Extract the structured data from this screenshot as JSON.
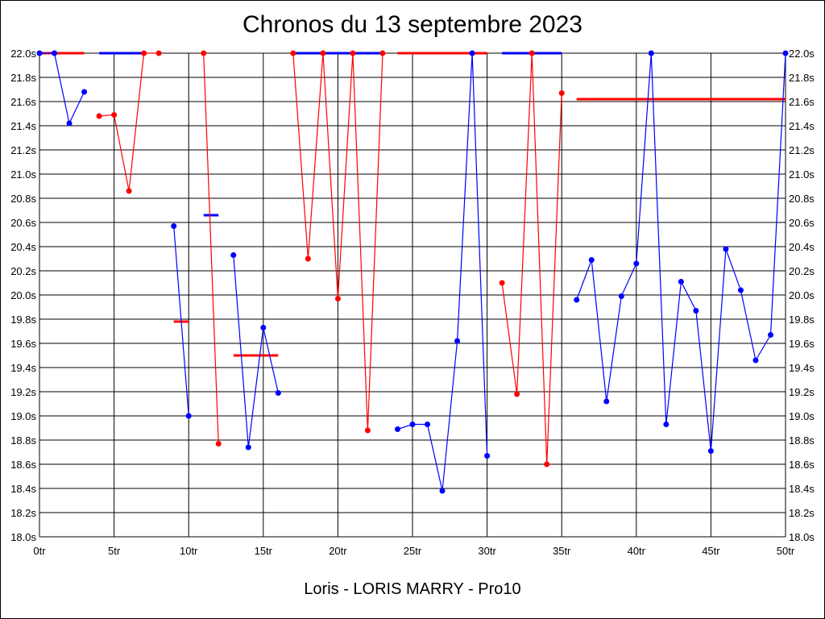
{
  "chart_data": {
    "type": "line",
    "title": "Chronos du 13 septembre 2023",
    "subtitle": "Loris - LORIS MARRY - Pro10",
    "x_unit": "tr",
    "y_unit": "s",
    "xlim": [
      0,
      50
    ],
    "ylim": [
      18.0,
      22.0
    ],
    "x_ticks": [
      0,
      5,
      10,
      15,
      20,
      25,
      30,
      35,
      40,
      45,
      50
    ],
    "y_ticks": [
      18.0,
      18.2,
      18.4,
      18.6,
      18.8,
      19.0,
      19.2,
      19.4,
      19.6,
      19.8,
      20.0,
      20.2,
      20.4,
      20.6,
      20.8,
      21.0,
      21.2,
      21.4,
      21.6,
      21.8,
      22.0
    ],
    "grid": true,
    "colors": {
      "blue": "#0000ff",
      "red": "#ff0000",
      "grid": "#000000"
    },
    "segments": [
      {
        "color": "blue",
        "points": [
          [
            0,
            22.0
          ],
          [
            1,
            22.0
          ],
          [
            2,
            21.42
          ],
          [
            3,
            21.68
          ]
        ]
      },
      {
        "color": "red",
        "points": [
          [
            4,
            21.48
          ],
          [
            5,
            21.49
          ],
          [
            6,
            20.86
          ],
          [
            7,
            22.0
          ],
          [
            8,
            22.0
          ]
        ]
      },
      {
        "color": "blue",
        "points": [
          [
            9,
            20.57
          ],
          [
            10,
            19.0
          ]
        ]
      },
      {
        "color": "red",
        "points": [
          [
            11,
            22.0
          ],
          [
            12,
            18.77
          ]
        ]
      },
      {
        "color": "blue",
        "points": [
          [
            13,
            20.33
          ],
          [
            14,
            18.74
          ],
          [
            15,
            19.73
          ],
          [
            16,
            19.19
          ]
        ]
      },
      {
        "color": "red",
        "points": [
          [
            17,
            22.0
          ],
          [
            18,
            20.3
          ],
          [
            19,
            22.0
          ],
          [
            20,
            19.97
          ],
          [
            21,
            22.0
          ],
          [
            22,
            18.88
          ],
          [
            23,
            22.0
          ]
        ]
      },
      {
        "color": "blue",
        "points": [
          [
            24,
            18.89
          ],
          [
            25,
            18.93
          ],
          [
            26,
            18.93
          ],
          [
            27,
            18.38
          ],
          [
            28,
            19.62
          ],
          [
            29,
            22.0
          ],
          [
            30,
            18.67
          ]
        ]
      },
      {
        "color": "red",
        "points": [
          [
            31,
            20.1
          ],
          [
            32,
            19.18
          ],
          [
            33,
            22.0
          ],
          [
            34,
            18.6
          ],
          [
            35,
            21.67
          ]
        ]
      },
      {
        "color": "blue",
        "points": [
          [
            36,
            19.96
          ],
          [
            37,
            20.29
          ],
          [
            38,
            19.12
          ],
          [
            39,
            19.99
          ],
          [
            40,
            20.26
          ],
          [
            41,
            22.0
          ],
          [
            42,
            18.93
          ],
          [
            43,
            20.11
          ],
          [
            44,
            19.87
          ],
          [
            45,
            18.71
          ],
          [
            46,
            20.38
          ],
          [
            47,
            20.04
          ],
          [
            48,
            19.46
          ],
          [
            49,
            19.67
          ],
          [
            50,
            22.0
          ]
        ]
      }
    ],
    "reference_lines": [
      {
        "color": "red",
        "x": [
          0,
          3
        ],
        "y": 22.0
      },
      {
        "color": "blue",
        "x": [
          4,
          7
        ],
        "y": 22.0
      },
      {
        "color": "red",
        "x": [
          9,
          10
        ],
        "y": 19.78
      },
      {
        "color": "blue",
        "x": [
          11,
          12
        ],
        "y": 20.66
      },
      {
        "color": "red",
        "x": [
          13,
          16
        ],
        "y": 19.5
      },
      {
        "color": "blue",
        "x": [
          17,
          23
        ],
        "y": 22.0
      },
      {
        "color": "red",
        "x": [
          24,
          30
        ],
        "y": 22.0
      },
      {
        "color": "blue",
        "x": [
          31,
          35
        ],
        "y": 22.0
      },
      {
        "color": "red",
        "x": [
          36,
          50
        ],
        "y": 21.62
      }
    ]
  }
}
